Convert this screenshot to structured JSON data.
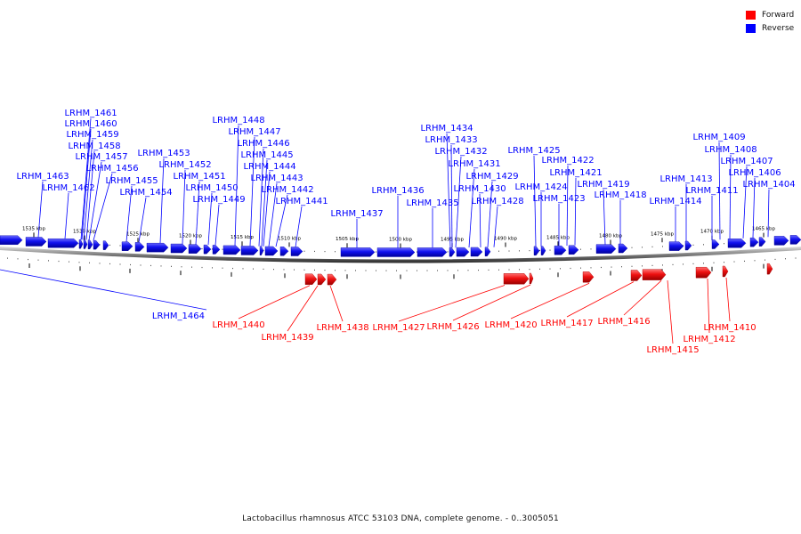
{
  "legend": [
    {
      "label": "Forward",
      "color": "#ff0000"
    },
    {
      "label": "Reverse",
      "color": "#0000ff"
    }
  ],
  "caption": "Lactobacillus rhamnosus ATCC 53103 DNA, complete genome. - 0..3005051",
  "ticks": [
    "1535 kbp",
    "1530 kbp",
    "1525 kbp",
    "1520 kbp",
    "1515 kbp",
    "1510 kbp",
    "1505 kbp",
    "1500 kbp",
    "1495 kbp",
    "1490 kbp",
    "1485 kbp",
    "1480 kbp",
    "1475 kbp",
    "1470 kbp",
    "1465 kbp"
  ],
  "reverse_genes": [
    "LRHM_1461",
    "LRHM_1460",
    "LRHM_1459",
    "LRHM_1458",
    "LRHM_1457",
    "LRHM_1456",
    "LRHM_1463",
    "LRHM_1462",
    "LRHM_1455",
    "LRHM_1454",
    "LRHM_1453",
    "LRHM_1452",
    "LRHM_1451",
    "LRHM_1450",
    "LRHM_1449",
    "LRHM_1448",
    "LRHM_1447",
    "LRHM_1446",
    "LRHM_1445",
    "LRHM_1444",
    "LRHM_1443",
    "LRHM_1442",
    "LRHM_1441",
    "LRHM_1437",
    "LRHM_1436",
    "LRHM_1435",
    "LRHM_1434",
    "LRHM_1433",
    "LRHM_1432",
    "LRHM_1431",
    "LRHM_1429",
    "LRHM_1430",
    "LRHM_1428",
    "LRHM_1425",
    "LRHM_1424",
    "LRHM_1423",
    "LRHM_1422",
    "LRHM_1421",
    "LRHM_1419",
    "LRHM_1418",
    "LRHM_1414",
    "LRHM_1413",
    "LRHM_1411",
    "LRHM_1409",
    "LRHM_1408",
    "LRHM_1407",
    "LRHM_1406",
    "LRHM_1404",
    "LRHM_1464"
  ],
  "forward_genes": [
    "LRHM_1440",
    "LRHM_1439",
    "LRHM_1438",
    "LRHM_1427",
    "LRHM_1426",
    "LRHM_1420",
    "LRHM_1417",
    "LRHM_1416",
    "LRHM_1415",
    "LRHM_1412",
    "LRHM_1410"
  ]
}
